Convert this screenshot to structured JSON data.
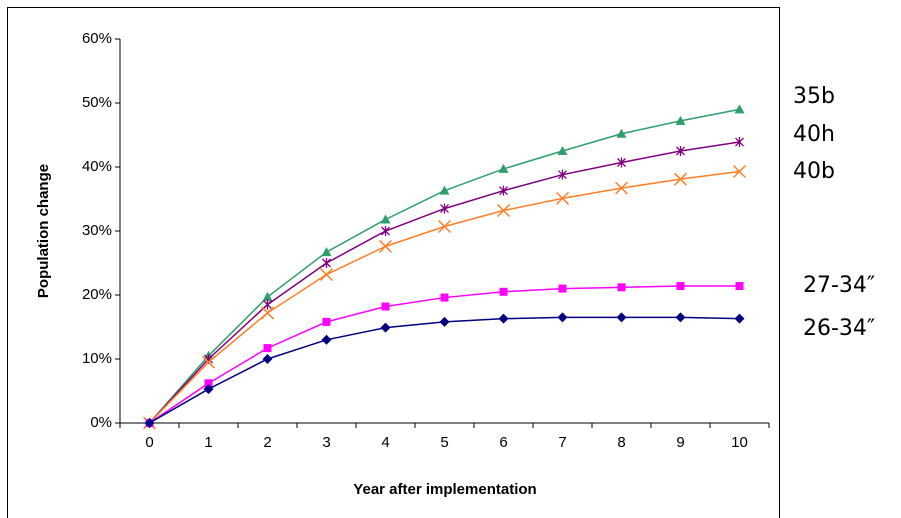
{
  "chart_data": {
    "type": "line",
    "x_label": "Year after implementation",
    "y_label": "Population change",
    "categories": [
      "0",
      "1",
      "2",
      "3",
      "4",
      "5",
      "6",
      "7",
      "8",
      "9",
      "10"
    ],
    "ylim": [
      0,
      60
    ],
    "yticks": [
      {
        "value": 0,
        "label": "0%"
      },
      {
        "value": 10,
        "label": "10%"
      },
      {
        "value": 20,
        "label": "20%"
      },
      {
        "value": 30,
        "label": "30%"
      },
      {
        "value": 40,
        "label": "40%"
      },
      {
        "value": 50,
        "label": "50%"
      },
      {
        "value": 60,
        "label": "60%"
      }
    ],
    "series": [
      {
        "name": "35b",
        "color": "#2e9e6b",
        "marker": "triangle",
        "values": [
          0,
          10.5,
          19.7,
          26.7,
          31.8,
          36.3,
          39.7,
          42.5,
          45.2,
          47.2,
          49
        ]
      },
      {
        "name": "40h",
        "color": "#800080",
        "marker": "star",
        "values": [
          0,
          10,
          18.5,
          25,
          30,
          33.5,
          36.3,
          38.8,
          40.7,
          42.5,
          43.9
        ]
      },
      {
        "name": "40b",
        "color": "#ff7f27",
        "marker": "x",
        "values": [
          0,
          9.5,
          17.2,
          23.2,
          27.6,
          30.7,
          33.2,
          35.1,
          36.7,
          38.1,
          39.3
        ]
      },
      {
        "name": "27-34″",
        "color": "#ff00ff",
        "marker": "square",
        "values": [
          0,
          6.2,
          11.7,
          15.8,
          18.2,
          19.6,
          20.5,
          21,
          21.2,
          21.4,
          21.4
        ]
      },
      {
        "name": "26-34″",
        "color": "#000080",
        "marker": "diamond",
        "values": [
          0,
          5.3,
          10,
          13,
          14.9,
          15.8,
          16.3,
          16.5,
          16.5,
          16.5,
          16.3
        ]
      }
    ]
  }
}
